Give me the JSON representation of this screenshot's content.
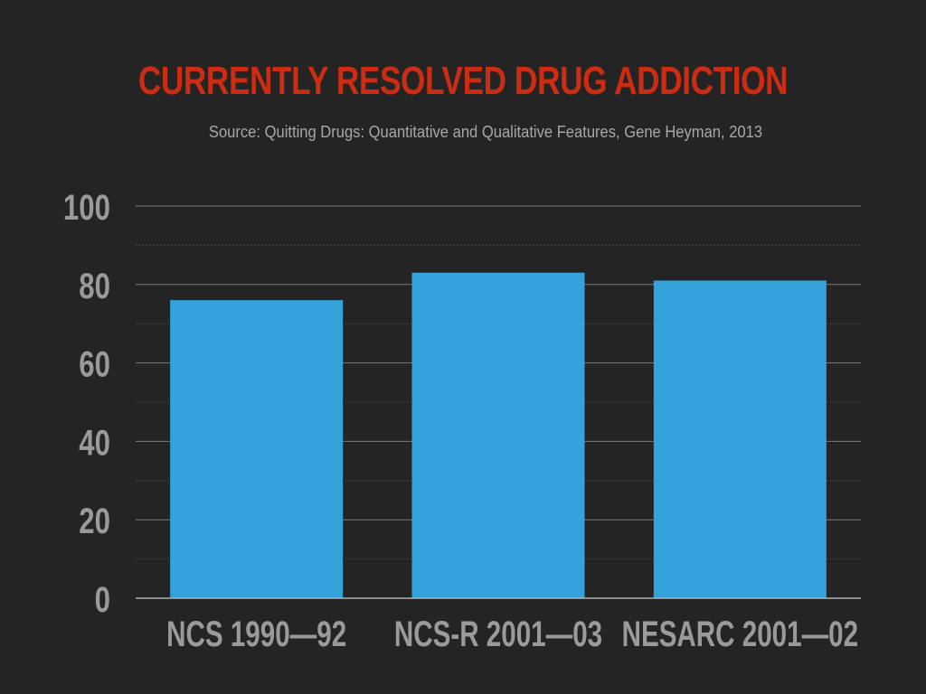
{
  "colors": {
    "background": "#242424",
    "title": "#cc2d12",
    "subtitle": "#a8a8a8",
    "bar": "#34a3dc",
    "axis_text": "#9a9a9a",
    "grid": "#7a7a7a"
  },
  "chart_data": {
    "type": "bar",
    "title": "CURRENTLY RESOLVED DRUG ADDICTION",
    "subtitle": "Source: Quitting Drugs: Quantitative and Qualitative Features, Gene Heyman, 2013",
    "categories": [
      "NCS 1990—92",
      "NCS-R 2001—03",
      "NESARC 2001—02"
    ],
    "values": [
      76,
      83,
      81
    ],
    "ylim": [
      0,
      100
    ],
    "yticks": [
      0,
      20,
      40,
      60,
      80,
      100
    ],
    "grid": true,
    "minor_grid": true,
    "legend": false
  }
}
